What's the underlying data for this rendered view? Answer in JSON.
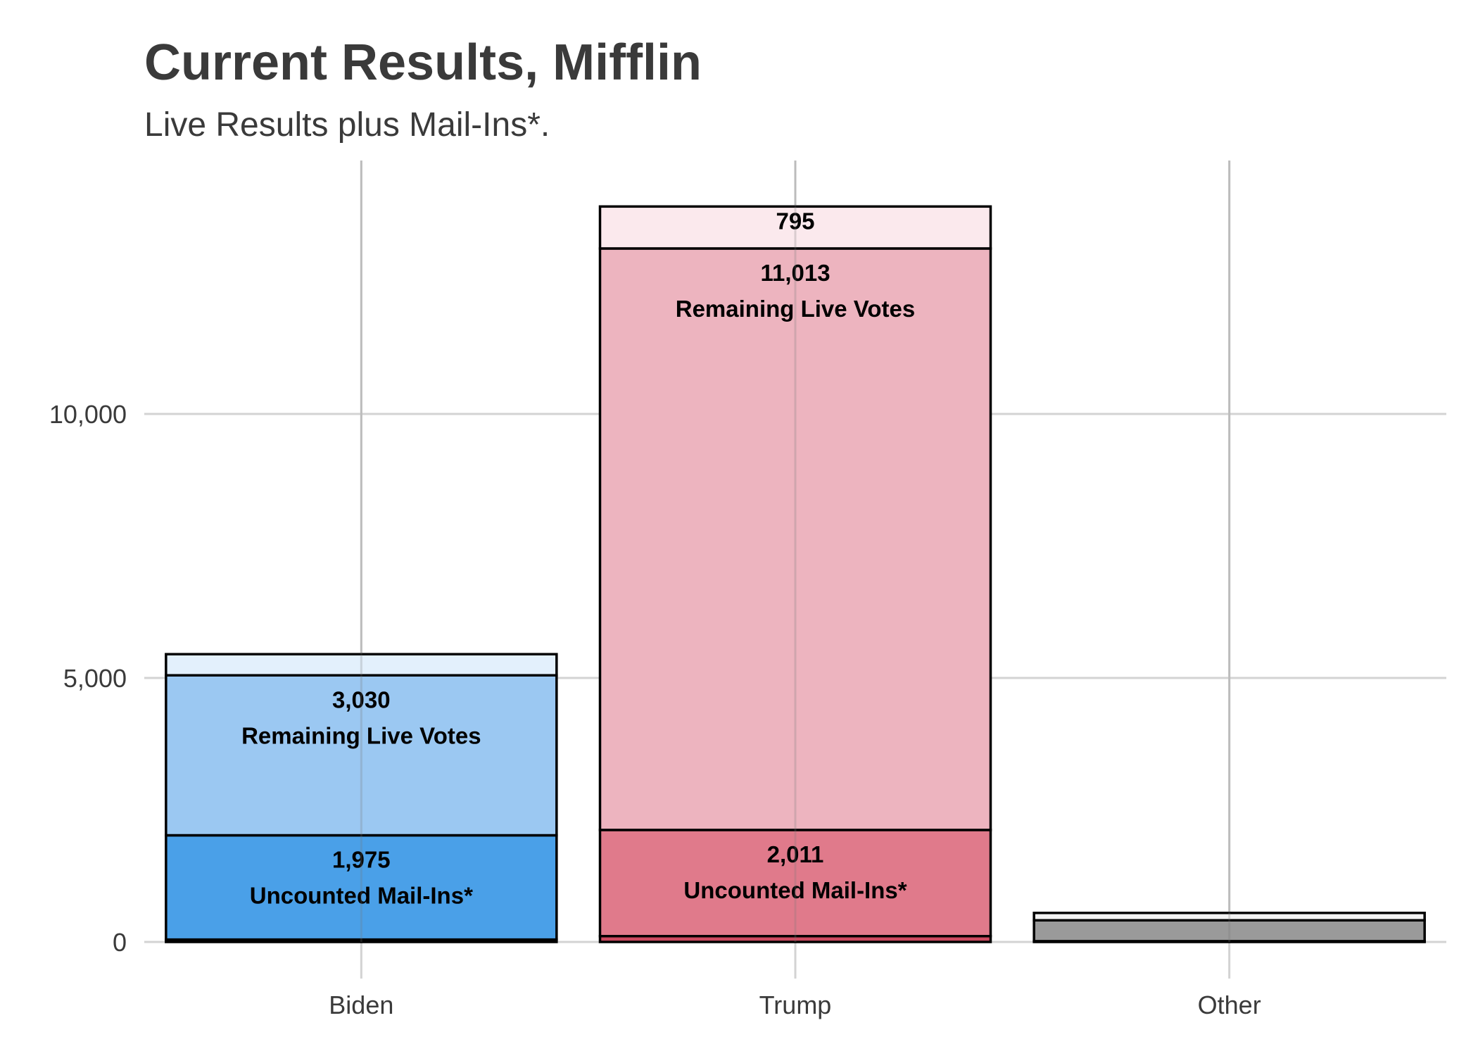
{
  "chart_data": {
    "type": "bar",
    "stacked": true,
    "title": "Current Results, Mifflin",
    "subtitle": "Live Results plus Mail-Ins*.",
    "xlabel": "",
    "ylabel": "",
    "ylim": [
      0,
      14800
    ],
    "y_ticks": [
      {
        "value": 0,
        "label": "0"
      },
      {
        "value": 5000,
        "label": "5,000"
      },
      {
        "value": 10000,
        "label": "10,000"
      }
    ],
    "grid": true,
    "categories": [
      "Biden",
      "Trump",
      "Other"
    ],
    "bars": [
      {
        "category": "Biden",
        "segments": [
          {
            "value": 45,
            "color": "#1a5fa8",
            "label": "",
            "sublabel": ""
          },
          {
            "value": 1975,
            "color": "#4aa0e8",
            "label": "1,975",
            "sublabel": "Uncounted Mail-Ins*"
          },
          {
            "value": 3030,
            "color": "#9bc8f2",
            "label": "3,030",
            "sublabel": "Remaining Live Votes"
          },
          {
            "value": 400,
            "color": "#e3f0fc",
            "label": "",
            "sublabel": ""
          }
        ]
      },
      {
        "category": "Trump",
        "segments": [
          {
            "value": 110,
            "color": "#cc4a60",
            "label": "",
            "sublabel": ""
          },
          {
            "value": 2011,
            "color": "#e07a8b",
            "label": "2,011",
            "sublabel": "Uncounted Mail-Ins*"
          },
          {
            "value": 11013,
            "color": "#edb4bf",
            "label": "11,013",
            "sublabel": "Remaining Live Votes"
          },
          {
            "value": 795,
            "color": "#fbe9ed",
            "label": "795",
            "sublabel": ""
          }
        ]
      },
      {
        "category": "Other",
        "segments": [
          {
            "value": 15,
            "color": "#555555",
            "label": "",
            "sublabel": ""
          },
          {
            "value": 395,
            "color": "#9a9a9a",
            "label": "",
            "sublabel": ""
          },
          {
            "value": 140,
            "color": "#f2f2f2",
            "label": "",
            "sublabel": ""
          }
        ]
      }
    ]
  }
}
